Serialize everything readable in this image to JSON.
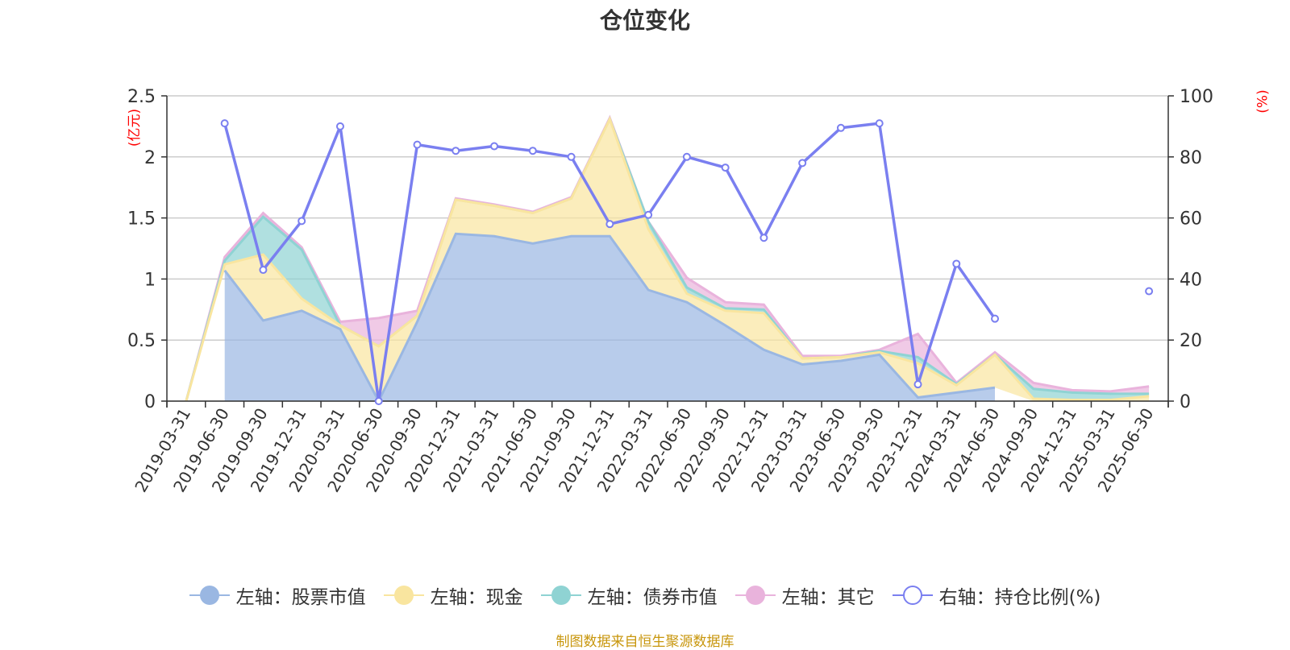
{
  "title": "仓位变化",
  "left_unit": "(亿元)",
  "right_unit": "(%)",
  "source": "制图数据来自恒生聚源数据库",
  "legend": [
    {
      "label": "左轴：股票市值",
      "color": "#9ab7e2",
      "marker": "filled"
    },
    {
      "label": "左轴：现金",
      "color": "#f9e59f",
      "marker": "filled"
    },
    {
      "label": "左轴：债券市值",
      "color": "#8fd3d3",
      "marker": "filled"
    },
    {
      "label": "左轴：其它",
      "color": "#e9b3dc",
      "marker": "filled"
    },
    {
      "label": "右轴：持仓比例(%)",
      "color": "#7a7ff0",
      "marker": "hollow"
    }
  ],
  "chart_data": {
    "type": "area",
    "title": "仓位变化",
    "categories": [
      "2019-03-31",
      "2019-06-30",
      "2019-09-30",
      "2019-12-31",
      "2020-03-31",
      "2020-06-30",
      "2020-09-30",
      "2020-12-31",
      "2021-03-31",
      "2021-06-30",
      "2021-09-30",
      "2021-12-31",
      "2022-03-31",
      "2022-06-30",
      "2022-09-30",
      "2022-12-31",
      "2023-03-31",
      "2023-06-30",
      "2023-09-30",
      "2023-12-31",
      "2024-03-31",
      "2024-06-30",
      "2024-09-30",
      "2024-12-31",
      "2025-03-31",
      "2025-06-30"
    ],
    "left_axis": {
      "unit": "(亿元)",
      "ylim": [
        0,
        2.5
      ],
      "ticks": [
        "0",
        "0.5",
        "1",
        "1.5",
        "2",
        "2.5"
      ]
    },
    "right_axis": {
      "unit": "(%)",
      "ylim": [
        0,
        100
      ],
      "ticks": [
        "0",
        "20",
        "40",
        "60",
        "80",
        "100"
      ]
    },
    "grid": true,
    "legend_position": "bottom",
    "stacked_series": [
      {
        "name": "左轴：股票市值",
        "color": "#9ab7e2",
        "values": [
          null,
          1.07,
          0.66,
          0.74,
          0.59,
          0.0,
          0.65,
          1.37,
          1.35,
          1.29,
          1.35,
          1.35,
          0.91,
          0.81,
          0.62,
          0.42,
          0.3,
          0.33,
          0.38,
          0.03,
          0.07,
          0.11,
          null,
          null,
          null,
          null
        ]
      },
      {
        "name": "左轴：现金",
        "color": "#f9e59f",
        "values": [
          0.0,
          0.05,
          0.54,
          0.1,
          0.03,
          0.45,
          0.05,
          0.28,
          0.25,
          0.25,
          0.31,
          0.96,
          0.5,
          0.07,
          0.12,
          0.3,
          0.05,
          0.03,
          0.02,
          0.28,
          0.06,
          0.27,
          0.02,
          0.01,
          0.01,
          0.04
        ]
      },
      {
        "name": "左轴：债券市值",
        "color": "#8fd3d3",
        "values": [
          0.0,
          0.03,
          0.31,
          0.4,
          0.0,
          0.0,
          0.0,
          0.0,
          0.0,
          0.0,
          0.0,
          0.0,
          0.06,
          0.05,
          0.02,
          0.03,
          0.0,
          0.0,
          0.01,
          0.05,
          0.01,
          0.0,
          0.08,
          0.06,
          0.05,
          0.02
        ]
      },
      {
        "name": "左轴：其它",
        "color": "#e9b3dc",
        "values": [
          0.0,
          0.03,
          0.03,
          0.02,
          0.03,
          0.23,
          0.04,
          0.01,
          0.01,
          0.01,
          0.01,
          0.01,
          0.0,
          0.08,
          0.05,
          0.04,
          0.02,
          0.01,
          0.01,
          0.19,
          0.01,
          0.02,
          0.05,
          0.02,
          0.02,
          0.06
        ]
      }
    ],
    "line_series": {
      "name": "右轴：持仓比例(%)",
      "color": "#7a7ff0",
      "values": [
        null,
        91,
        43,
        59,
        90,
        0,
        84,
        82,
        83.5,
        82,
        80,
        58,
        61,
        80,
        76.5,
        53.5,
        78,
        89.5,
        91,
        5.5,
        45,
        27,
        null,
        null,
        null,
        36
      ]
    }
  }
}
